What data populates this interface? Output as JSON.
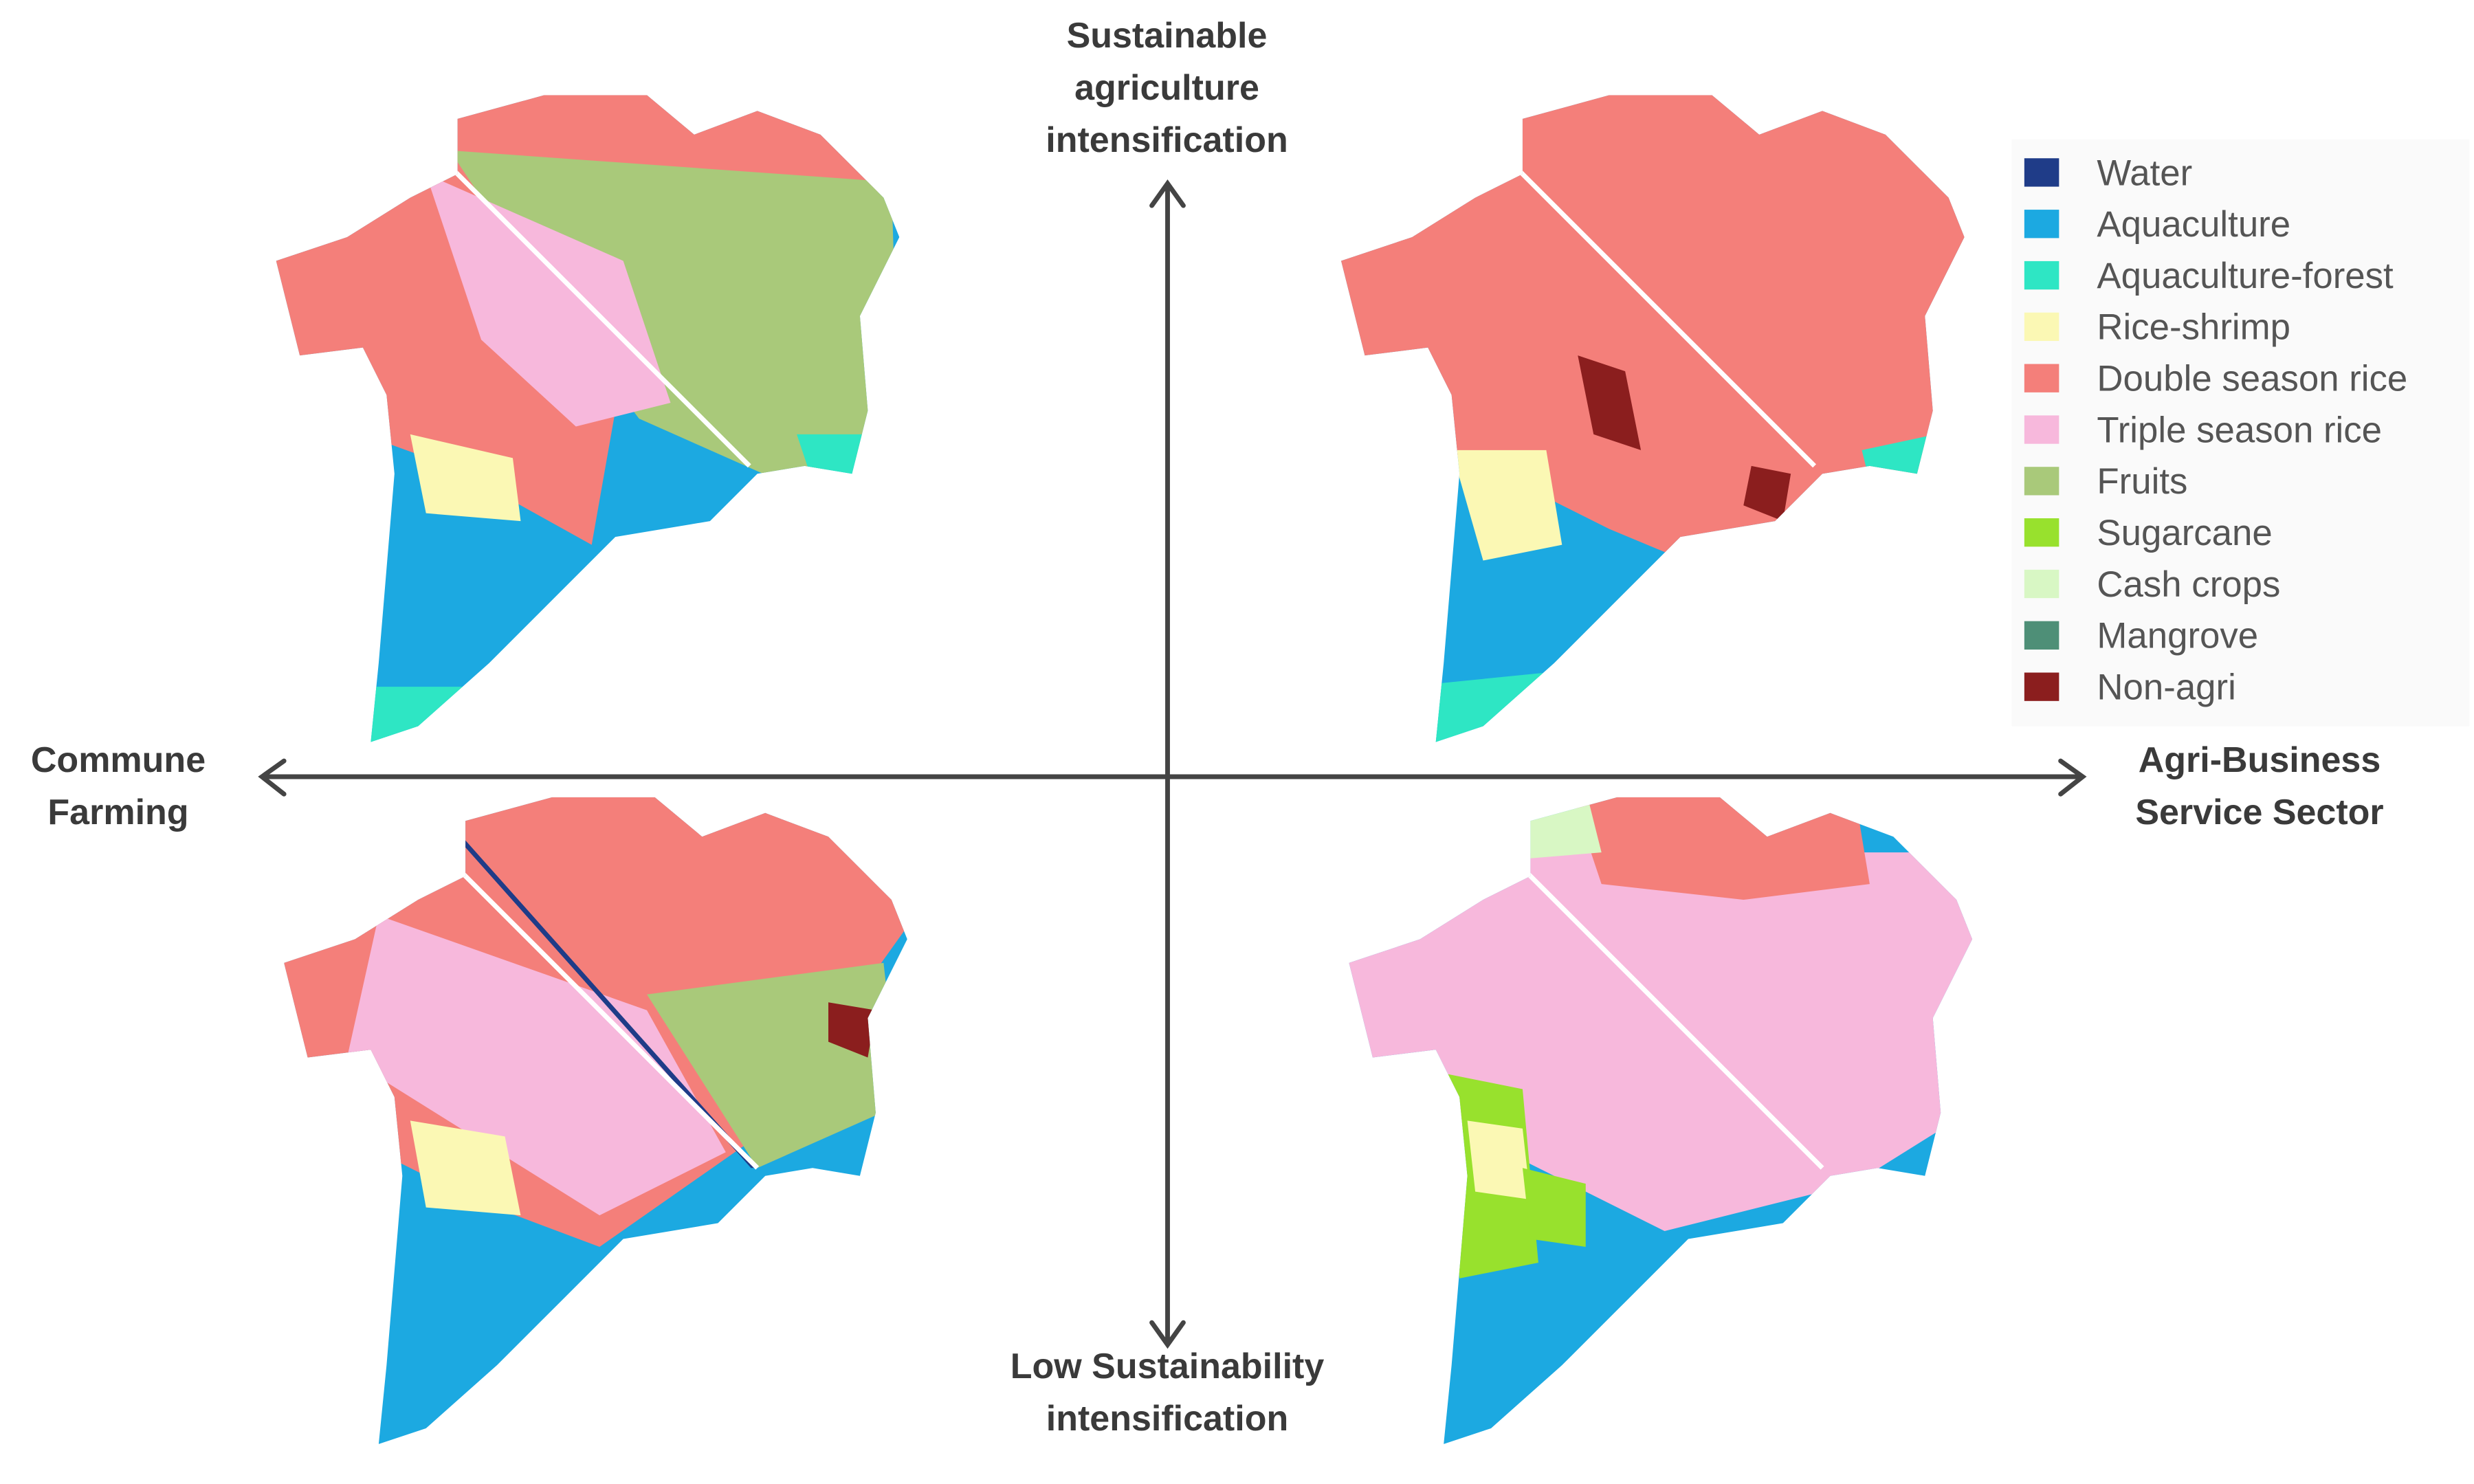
{
  "axes": {
    "top": "Sustainable agriculture intensification",
    "bottom": "Low Sustainability intensification",
    "left": "Commune Farming",
    "right": "Agri-Business Service Sector"
  },
  "legend": [
    {
      "label": "Water",
      "color": "#1f3c88"
    },
    {
      "label": "Aquaculture",
      "color": "#1ca9e1"
    },
    {
      "label": "Aquaculture-forest",
      "color": "#2ee6c4"
    },
    {
      "label": "Rice-shrimp",
      "color": "#fbf8b4"
    },
    {
      "label": "Double season rice",
      "color": "#f47f7a"
    },
    {
      "label": "Triple season rice",
      "color": "#f7b8dc"
    },
    {
      "label": "Fruits",
      "color": "#a9c97a"
    },
    {
      "label": "Sugarcane",
      "color": "#98e12d"
    },
    {
      "label": "Cash crops",
      "color": "#d8f7c4"
    },
    {
      "label": "Mangrove",
      "color": "#4e8f77"
    },
    {
      "label": "Non-agri",
      "color": "#8b1e1e"
    }
  ]
}
